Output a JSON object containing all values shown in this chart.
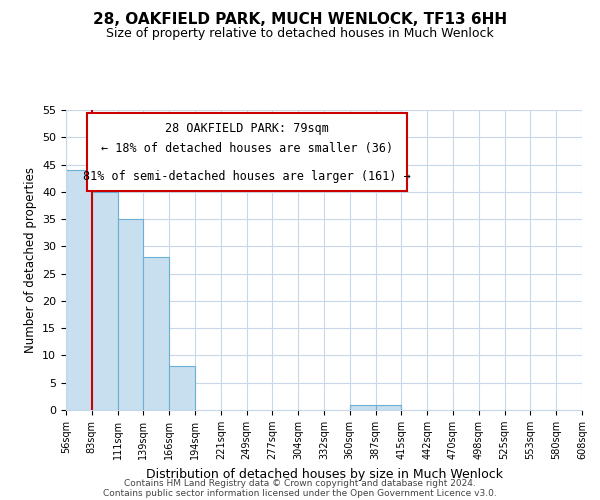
{
  "title": "28, OAKFIELD PARK, MUCH WENLOCK, TF13 6HH",
  "subtitle": "Size of property relative to detached houses in Much Wenlock",
  "xlabel": "Distribution of detached houses by size in Much Wenlock",
  "ylabel": "Number of detached properties",
  "footer_line1": "Contains HM Land Registry data © Crown copyright and database right 2024.",
  "footer_line2": "Contains public sector information licensed under the Open Government Licence v3.0.",
  "annotation_title": "28 OAKFIELD PARK: 79sqm",
  "annotation_line1": "← 18% of detached houses are smaller (36)",
  "annotation_line2": "81% of semi-detached houses are larger (161) →",
  "bin_labels": [
    "56sqm",
    "83sqm",
    "111sqm",
    "139sqm",
    "166sqm",
    "194sqm",
    "221sqm",
    "249sqm",
    "277sqm",
    "304sqm",
    "332sqm",
    "360sqm",
    "387sqm",
    "415sqm",
    "442sqm",
    "470sqm",
    "498sqm",
    "525sqm",
    "553sqm",
    "580sqm",
    "608sqm"
  ],
  "bar_heights": [
    44,
    40,
    35,
    28,
    8,
    0,
    0,
    0,
    0,
    0,
    0,
    1,
    1,
    0,
    0,
    0,
    0,
    0,
    0,
    0
  ],
  "bar_color": "#c8dff0",
  "bar_edge_color": "#6baed6",
  "ylim": [
    0,
    55
  ],
  "yticks": [
    0,
    5,
    10,
    15,
    20,
    25,
    30,
    35,
    40,
    45,
    50,
    55
  ],
  "vline_color": "#cc0000",
  "vline_x": 1.0,
  "background_color": "#ffffff",
  "grid_color": "#c8d8e8",
  "ann_edge_color": "#cc0000",
  "ann_fill_color": "#ffffff"
}
